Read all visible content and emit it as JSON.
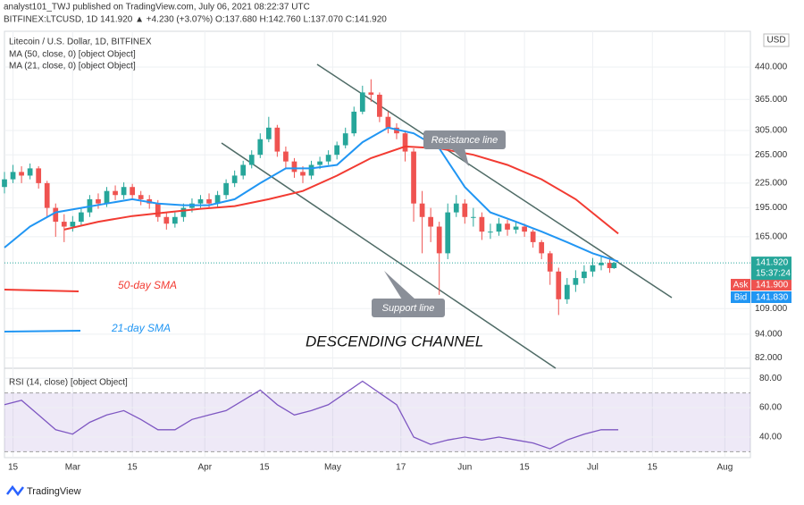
{
  "header": {
    "publisher": "analyst101_TWJ published on TradingView.com, July 06, 2021 08:22:37 UTC",
    "symbol": "BITFINEX:LTCUSD, 1D 141.920 ▲ +4.230 (+3.07%) O:137.680 H:142.760 L:137.070 C:141.920"
  },
  "footer": "TradingView",
  "chart_data": {
    "type": "candlestick",
    "title": "Litecoin / U.S. Dollar, 1D, BITFINEX",
    "currency": "USD",
    "log_scale": true,
    "grid": true,
    "up_color": "#26a69a",
    "down_color": "#ef5350",
    "x": [
      -2,
      0,
      2,
      4,
      6,
      8,
      10,
      12,
      14,
      16,
      18,
      20,
      22,
      24,
      26,
      28,
      30,
      32,
      34,
      36,
      38,
      40,
      42,
      44,
      46,
      48,
      50,
      52,
      54,
      56,
      58,
      60,
      62,
      64,
      66,
      68,
      70,
      72,
      74,
      76,
      78,
      80,
      82,
      84,
      86,
      88,
      90,
      92,
      94,
      96,
      98,
      100,
      102,
      104,
      106,
      108,
      110,
      112,
      114,
      116,
      118,
      120,
      122,
      124,
      126,
      128,
      130,
      132,
      134,
      136,
      138,
      140,
      141
    ],
    "open": [
      220,
      230,
      240,
      235,
      245,
      225,
      195,
      180,
      175,
      180,
      190,
      205,
      200,
      215,
      210,
      220,
      210,
      205,
      200,
      185,
      178,
      185,
      195,
      200,
      205,
      200,
      210,
      225,
      235,
      250,
      265,
      290,
      310,
      270,
      255,
      240,
      235,
      250,
      255,
      265,
      280,
      300,
      340,
      380,
      375,
      330,
      310,
      300,
      270,
      200,
      185,
      175,
      150,
      190,
      200,
      185,
      185,
      170,
      170,
      178,
      172,
      175,
      170,
      160,
      150,
      135,
      115,
      125,
      130,
      135,
      140,
      142,
      137.68
    ],
    "high": [
      240,
      250,
      248,
      252,
      248,
      228,
      200,
      188,
      186,
      195,
      210,
      212,
      220,
      222,
      226,
      224,
      215,
      210,
      204,
      190,
      190,
      200,
      206,
      210,
      212,
      215,
      230,
      242,
      256,
      272,
      300,
      330,
      315,
      278,
      260,
      248,
      256,
      262,
      272,
      286,
      310,
      350,
      395,
      410,
      380,
      340,
      318,
      305,
      275,
      215,
      195,
      180,
      200,
      210,
      205,
      195,
      190,
      178,
      184,
      182,
      180,
      178,
      172,
      162,
      152,
      138,
      130,
      136,
      140,
      146,
      148,
      145,
      142.76
    ],
    "low": [
      212,
      225,
      225,
      230,
      218,
      185,
      165,
      160,
      170,
      176,
      185,
      194,
      196,
      204,
      205,
      204,
      198,
      194,
      180,
      172,
      174,
      180,
      190,
      195,
      194,
      196,
      205,
      220,
      230,
      245,
      260,
      285,
      262,
      245,
      232,
      225,
      230,
      244,
      250,
      258,
      275,
      295,
      335,
      360,
      320,
      300,
      290,
      255,
      180,
      150,
      160,
      118,
      145,
      185,
      178,
      175,
      162,
      163,
      166,
      166,
      168,
      165,
      155,
      145,
      125,
      105,
      112,
      120,
      126,
      131,
      136,
      134,
      137.07
    ],
    "close": [
      230,
      240,
      235,
      245,
      225,
      195,
      180,
      175,
      180,
      190,
      205,
      200,
      215,
      210,
      220,
      210,
      205,
      200,
      185,
      178,
      185,
      195,
      200,
      205,
      200,
      210,
      225,
      235,
      250,
      265,
      290,
      310,
      270,
      255,
      240,
      235,
      250,
      255,
      265,
      280,
      300,
      340,
      380,
      375,
      330,
      310,
      300,
      270,
      200,
      185,
      175,
      150,
      190,
      200,
      185,
      185,
      170,
      170,
      178,
      172,
      175,
      170,
      160,
      150,
      135,
      115,
      125,
      130,
      135,
      140,
      142,
      137.68,
      141.92
    ],
    "last_price_label": "141.920",
    "countdown": "15:37:24",
    "ask": {
      "label": "Ask",
      "price": "141.900"
    },
    "bid": {
      "label": "Bid",
      "price": "141.830"
    },
    "xlim": [
      -2,
      173
    ],
    "xticks": [
      {
        "value": 0,
        "label": "15"
      },
      {
        "value": 14,
        "label": "Mar"
      },
      {
        "value": 28,
        "label": "15"
      },
      {
        "value": 45,
        "label": "Apr"
      },
      {
        "value": 59,
        "label": "15"
      },
      {
        "value": 75,
        "label": "May"
      },
      {
        "value": 91,
        "label": "17"
      },
      {
        "value": 106,
        "label": "Jun"
      },
      {
        "value": 120,
        "label": "15"
      },
      {
        "value": 136,
        "label": "Jul"
      },
      {
        "value": 150,
        "label": "15"
      },
      {
        "value": 167,
        "label": "Aug"
      }
    ],
    "ylim": [
      78,
      541
    ],
    "yticks": [
      {
        "value": 82,
        "label": "82.000"
      },
      {
        "value": 94,
        "label": "94.000"
      },
      {
        "value": 109,
        "label": "109.000"
      },
      {
        "value": 165,
        "label": "165.000"
      },
      {
        "value": 195,
        "label": "195.000"
      },
      {
        "value": 225,
        "label": "225.000"
      },
      {
        "value": 265,
        "label": "265.000"
      },
      {
        "value": 305,
        "label": "305.000"
      },
      {
        "value": 365,
        "label": "365.000"
      },
      {
        "value": 440,
        "label": "440.000"
      }
    ],
    "series": [
      {
        "name": "MA (50, close, 0) [object Object]",
        "color": "#f23b32",
        "x": [
          12,
          20,
          28,
          36,
          44,
          52,
          60,
          68,
          76,
          84,
          92,
          100,
          108,
          116,
          124,
          132,
          142
        ],
        "values": [
          172,
          180,
          186,
          190,
          194,
          197,
          205,
          215,
          235,
          260,
          278,
          275,
          265,
          250,
          230,
          205,
          168
        ]
      },
      {
        "name": "MA (21, close, 0) [object Object]",
        "color": "#2196f3",
        "x": [
          -2,
          4,
          10,
          16,
          22,
          28,
          34,
          40,
          46,
          52,
          58,
          64,
          70,
          76,
          82,
          88,
          94,
          100,
          106,
          112,
          118,
          124,
          130,
          136,
          142
        ],
        "values": [
          155,
          175,
          190,
          195,
          200,
          205,
          200,
          198,
          198,
          205,
          225,
          245,
          245,
          250,
          285,
          310,
          300,
          275,
          220,
          190,
          180,
          170,
          160,
          150,
          143
        ]
      }
    ],
    "annotations": {
      "resistance": "Resistance line",
      "support": "Support line",
      "channel": "DESCENDING CHANNEL",
      "sma50": "50-day SMA",
      "sma21": "21-day SMA"
    },
    "rsi": {
      "name": "RSI (14, close) [object Object]",
      "color": "#7e57c2",
      "x": [
        -2,
        2,
        6,
        10,
        14,
        18,
        22,
        26,
        30,
        34,
        38,
        42,
        46,
        50,
        54,
        58,
        62,
        66,
        70,
        74,
        78,
        82,
        86,
        90,
        94,
        98,
        102,
        106,
        110,
        114,
        118,
        122,
        126,
        130,
        134,
        138,
        142
      ],
      "values": [
        62,
        65,
        55,
        45,
        42,
        50,
        55,
        58,
        52,
        45,
        45,
        52,
        55,
        58,
        65,
        72,
        62,
        55,
        58,
        62,
        70,
        78,
        70,
        62,
        40,
        35,
        38,
        40,
        38,
        40,
        38,
        36,
        32,
        38,
        42,
        45,
        45
      ],
      "ylim": [
        26,
        85
      ],
      "band": [
        30,
        70
      ],
      "yticks": [
        {
          "value": 40,
          "label": "40.00"
        },
        {
          "value": 60,
          "label": "60.00"
        },
        {
          "value": 80,
          "label": "80.00"
        }
      ]
    }
  }
}
